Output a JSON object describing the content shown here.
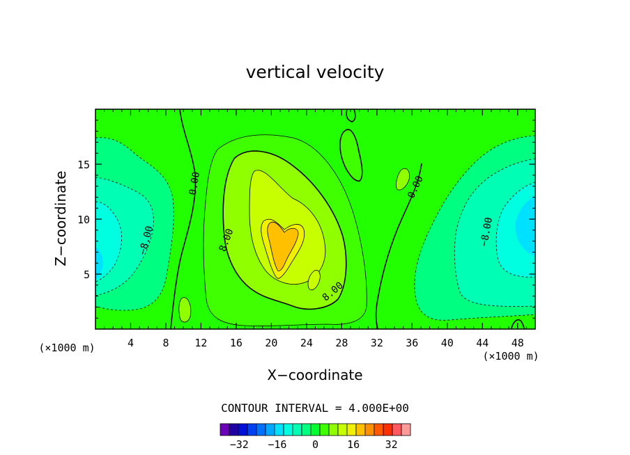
{
  "chart_data": {
    "type": "heatmap",
    "title": "vertical velocity",
    "xlabel": "X−coordinate",
    "ylabel": "Z−coordinate",
    "x_unit_left": "(×1000 m)",
    "x_unit_right": "(×1000 m)",
    "xlim": [
      0,
      50
    ],
    "ylim": [
      0,
      20
    ],
    "xticks": [
      4,
      8,
      12,
      16,
      20,
      24,
      28,
      32,
      36,
      40,
      44,
      48
    ],
    "yticks": [
      5,
      10,
      15
    ],
    "contour_interval_label": "CONTOUR INTERVAL = 4.000E+00",
    "contour_labels": [
      {
        "text": "0.00",
        "x": 11.6,
        "y": 13.2
      },
      {
        "text": "0.00",
        "x": 36.7,
        "y": 12.8
      },
      {
        "text": "8.00",
        "x": 15.2,
        "y": 8.0
      },
      {
        "text": "8.00",
        "x": 27.2,
        "y": 3.2
      },
      {
        "text": "−8.00",
        "x": 6.1,
        "y": 8.0
      },
      {
        "text": "−8.00",
        "x": 44.8,
        "y": 8.8
      }
    ],
    "colorbar": {
      "levels": [
        -40,
        -36,
        -32,
        -28,
        -24,
        -20,
        -16,
        -12,
        -8,
        -4,
        0,
        4,
        8,
        12,
        16,
        20,
        24,
        28,
        32,
        36,
        40
      ],
      "colors": [
        "#6a00b8",
        "#2000a0",
        "#0010d8",
        "#0040f0",
        "#0070ff",
        "#00a8ff",
        "#00e0ff",
        "#00ffe0",
        "#00ffb4",
        "#00ff80",
        "#00ff30",
        "#40ff00",
        "#90ff00",
        "#c8ff00",
        "#f0f000",
        "#ffc000",
        "#ff9000",
        "#ff5a00",
        "#ff3000",
        "#ff5a60",
        "#ff9a9a"
      ],
      "tick_values": [
        -32,
        -16,
        0,
        16,
        32
      ],
      "tick_labels": [
        "−32",
        "−16",
        "0",
        "16",
        "32"
      ]
    }
  }
}
